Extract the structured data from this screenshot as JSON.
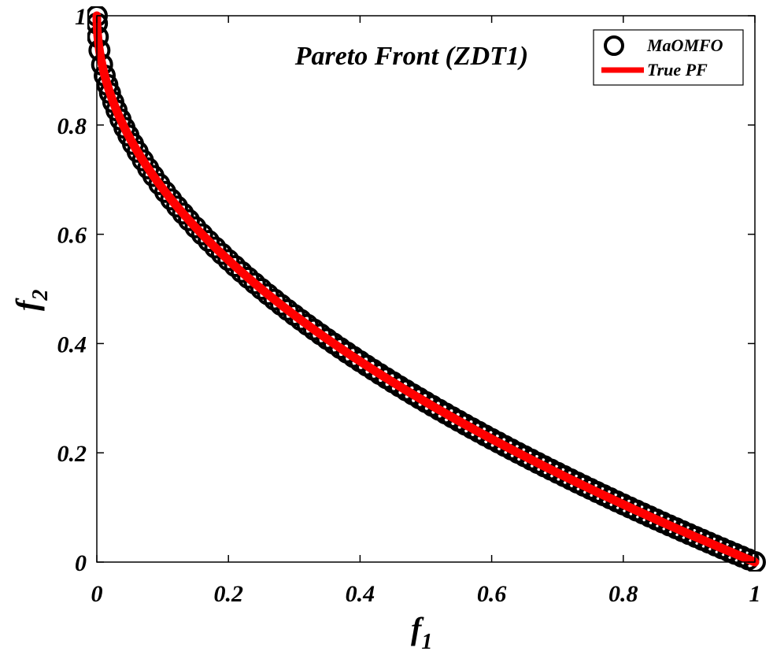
{
  "chart_data": {
    "type": "scatter",
    "title": "Pareto Front (ZDT1)",
    "xlabel": {
      "base": "f",
      "sub": "1"
    },
    "ylabel": {
      "base": "f",
      "sub": "2"
    },
    "xlim": [
      0,
      1
    ],
    "ylim": [
      0,
      1
    ],
    "xticks": [
      {
        "value": 0,
        "label": "0"
      },
      {
        "value": 0.2,
        "label": "0.2"
      },
      {
        "value": 0.4,
        "label": "0.4"
      },
      {
        "value": 0.6,
        "label": "0.6"
      },
      {
        "value": 0.8,
        "label": "0.8"
      },
      {
        "value": 1,
        "label": "1"
      }
    ],
    "yticks": [
      {
        "value": 0,
        "label": "0"
      },
      {
        "value": 0.2,
        "label": "0.2"
      },
      {
        "value": 0.4,
        "label": "0.4"
      },
      {
        "value": 0.6,
        "label": "0.6"
      },
      {
        "value": 0.8,
        "label": "0.8"
      },
      {
        "value": 1,
        "label": "1"
      }
    ],
    "grid": false,
    "legend_position": "top-right",
    "series": [
      {
        "name": "MaOMFO",
        "kind": "scatter",
        "marker": "circle",
        "color": "#000000",
        "x": [
          0,
          0.0002,
          0.0015,
          0.004,
          0.008,
          0.012,
          0.016,
          0.02,
          0.025,
          0.03,
          0.036,
          0.042,
          0.048,
          0.055,
          0.062,
          0.07,
          0.078,
          0.086,
          0.095,
          0.104,
          0.113,
          0.122,
          0.131,
          0.14,
          0.15,
          0.16,
          0.17,
          0.18,
          0.19,
          0.2,
          0.21,
          0.22,
          0.23,
          0.24,
          0.25,
          0.26,
          0.27,
          0.28,
          0.29,
          0.3,
          0.31,
          0.32,
          0.33,
          0.34,
          0.35,
          0.36,
          0.37,
          0.38,
          0.39,
          0.4,
          0.41,
          0.42,
          0.43,
          0.44,
          0.45,
          0.46,
          0.47,
          0.48,
          0.49,
          0.5,
          0.51,
          0.52,
          0.53,
          0.54,
          0.55,
          0.56,
          0.57,
          0.58,
          0.59,
          0.6,
          0.61,
          0.62,
          0.63,
          0.64,
          0.65,
          0.66,
          0.67,
          0.68,
          0.69,
          0.7,
          0.71,
          0.72,
          0.73,
          0.74,
          0.75,
          0.76,
          0.77,
          0.78,
          0.79,
          0.8,
          0.81,
          0.82,
          0.83,
          0.84,
          0.85,
          0.86,
          0.87,
          0.88,
          0.89,
          0.9,
          0.91,
          0.92,
          0.93,
          0.94,
          0.95,
          0.96,
          0.97,
          0.98,
          0.99,
          1.0
        ]
      },
      {
        "name": "True PF",
        "kind": "line",
        "color": "#ff0000",
        "function": "f2 = 1 - sqrt(f1)",
        "x_range": [
          0,
          1
        ]
      }
    ]
  }
}
